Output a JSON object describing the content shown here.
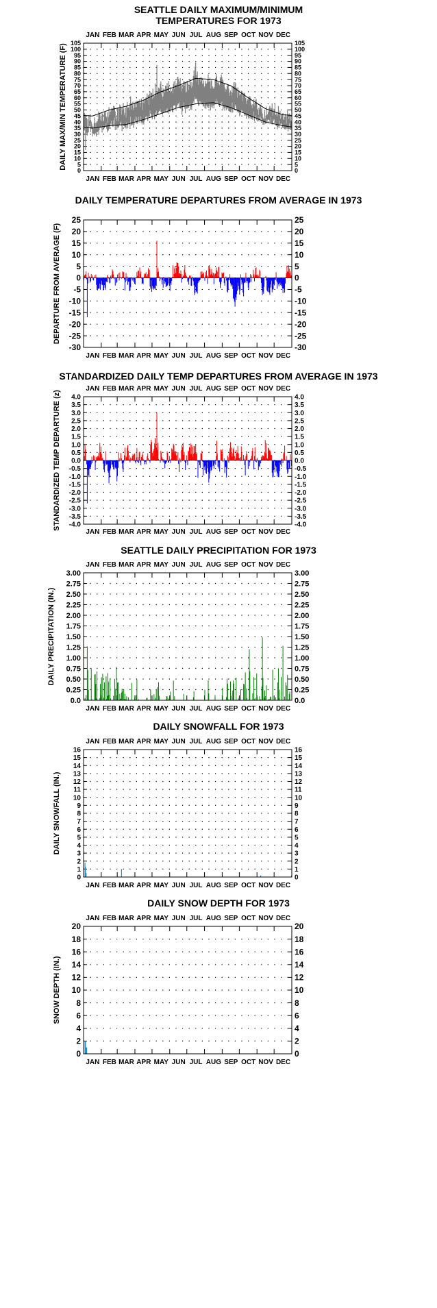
{
  "chart_data": [
    {
      "type": "line",
      "title_lines": [
        "SEATTLE DAILY MAXIMUM/MINIMUM",
        "TEMPERATURES FOR 1973"
      ],
      "ylabel": "DAILY MAX/MIN TEMPERATURE (F)",
      "months": [
        "JAN",
        "FEB",
        "MAR",
        "APR",
        "MAY",
        "JUN",
        "JUL",
        "AUG",
        "SEP",
        "OCT",
        "NOV",
        "DEC"
      ],
      "ylim": [
        0,
        105
      ],
      "yticks": [
        "0",
        "5",
        "10",
        "15",
        "20",
        "25",
        "30",
        "35",
        "40",
        "45",
        "50",
        "55",
        "60",
        "65",
        "70",
        "75",
        "80",
        "85",
        "90",
        "95",
        "100",
        "105"
      ],
      "grid": "dotted",
      "colors": {
        "observed_range": "#808080",
        "normals": "#000000"
      },
      "normal_max_monthly": [
        45,
        50,
        53,
        58,
        65,
        70,
        76,
        75,
        70,
        60,
        51,
        46
      ],
      "normal_min_monthly": [
        35,
        37,
        38,
        42,
        47,
        52,
        55,
        56,
        52,
        46,
        40,
        37
      ],
      "observed_max_monthly": [
        42,
        49,
        52,
        57,
        66,
        71,
        75,
        76,
        70,
        59,
        49,
        47
      ],
      "observed_min_monthly": [
        32,
        38,
        38,
        42,
        48,
        52,
        55,
        56,
        52,
        45,
        40,
        38
      ],
      "observed_peak_max": 87,
      "observed_low_min": 17
    },
    {
      "type": "bar",
      "title": "DAILY TEMPERATURE DEPARTURES FROM AVERAGE IN 1973",
      "ylabel": "DEPARTURE FROM AVERAGE (F)",
      "months": [
        "JAN",
        "FEB",
        "MAR",
        "APR",
        "MAY",
        "JUN",
        "JUL",
        "AUG",
        "SEP",
        "OCT",
        "NOV",
        "DEC"
      ],
      "ylim": [
        -30,
        25
      ],
      "yticks": [
        "-30",
        "-25",
        "-20",
        "-15",
        "-10",
        "-5",
        "0",
        "5",
        "10",
        "15",
        "20",
        "25"
      ],
      "grid": "dotted",
      "colors": {
        "above": "#ff0000",
        "below": "#0000ff"
      },
      "peak_positive": 16,
      "peak_negative": -17
    },
    {
      "type": "bar",
      "title": "STANDARDIZED DAILY TEMP DEPARTURES FROM AVERAGE IN 1973",
      "ylabel": "STANDARDIZED TEMP DEPARTURE (z)",
      "months": [
        "JAN",
        "FEB",
        "MAR",
        "APR",
        "MAY",
        "JUN",
        "JUL",
        "AUG",
        "SEP",
        "OCT",
        "NOV",
        "DEC"
      ],
      "ylim": [
        -4,
        4
      ],
      "yticks": [
        "-4.0",
        "-3.5",
        "-3.0",
        "-2.5",
        "-2.0",
        "-1.5",
        "-1.0",
        "-0.5",
        "0.0",
        "0.5",
        "1.0",
        "1.5",
        "2.0",
        "2.5",
        "3.0",
        "3.5",
        "4.0"
      ],
      "grid": "dotted",
      "colors": {
        "above": "#ff0000",
        "below": "#0000ff"
      },
      "peak_positive": 3.0,
      "peak_negative": -2.7
    },
    {
      "type": "bar",
      "title": "SEATTLE DAILY PRECIPITATION FOR 1973",
      "ylabel": "DAILY PRECIPITATION (IN.)",
      "months": [
        "JAN",
        "FEB",
        "MAR",
        "APR",
        "MAY",
        "JUN",
        "JUL",
        "AUG",
        "SEP",
        "OCT",
        "NOV",
        "DEC"
      ],
      "ylim": [
        0,
        3
      ],
      "yticks": [
        "0.0",
        "0.25",
        "0.50",
        "0.75",
        "1.00",
        "1.25",
        "1.50",
        "1.75",
        "2.00",
        "2.25",
        "2.50",
        "2.75",
        "3.00"
      ],
      "grid": "dotted",
      "colors": {
        "bars": "#008000"
      },
      "notable_days": [
        {
          "day": 6,
          "value": 1.27
        },
        {
          "day": 290,
          "value": 1.2
        },
        {
          "day": 313,
          "value": 1.48
        },
        {
          "day": 349,
          "value": 1.28
        }
      ]
    },
    {
      "type": "bar",
      "title": "DAILY SNOWFALL FOR 1973",
      "ylabel": "DAILY SNOWFALL (IN.)",
      "months": [
        "JAN",
        "FEB",
        "MAR",
        "APR",
        "MAY",
        "JUN",
        "JUL",
        "AUG",
        "SEP",
        "OCT",
        "NOV",
        "DEC"
      ],
      "ylim": [
        0,
        16
      ],
      "yticks": [
        "0",
        "1",
        "2",
        "3",
        "4",
        "5",
        "6",
        "7",
        "8",
        "9",
        "10",
        "11",
        "12",
        "13",
        "14",
        "15",
        "16"
      ],
      "grid": "dotted",
      "colors": {
        "bars": "#1e90d0"
      },
      "days": [
        {
          "day": 2,
          "value": 1.8
        },
        {
          "day": 3,
          "value": 1.3
        },
        {
          "day": 4,
          "value": 0.5
        },
        {
          "day": 66,
          "value": 1.0
        },
        {
          "day": 310,
          "value": 0.2
        },
        {
          "day": 364,
          "value": 0.2
        }
      ]
    },
    {
      "type": "bar",
      "title": "DAILY SNOW DEPTH FOR 1973",
      "ylabel": "SNOW DEPTH (IN.)",
      "months": [
        "JAN",
        "FEB",
        "MAR",
        "APR",
        "MAY",
        "JUN",
        "JUL",
        "AUG",
        "SEP",
        "OCT",
        "NOV",
        "DEC"
      ],
      "ylim": [
        0,
        20
      ],
      "yticks": [
        "0",
        "2",
        "4",
        "6",
        "8",
        "10",
        "12",
        "14",
        "16",
        "18",
        "20"
      ],
      "grid": "dotted",
      "colors": {
        "bars": "#1e90d0"
      },
      "days": [
        {
          "day": 2,
          "value": 2
        },
        {
          "day": 3,
          "value": 2
        },
        {
          "day": 4,
          "value": 1
        },
        {
          "day": 5,
          "value": 1
        }
      ]
    }
  ]
}
